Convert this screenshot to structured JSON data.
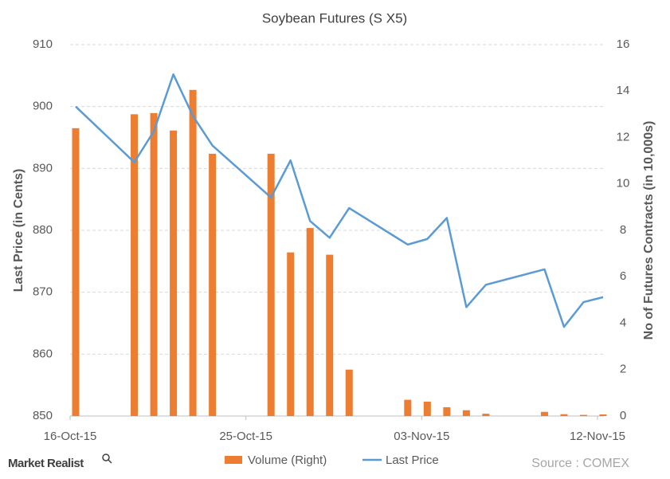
{
  "chart_data": {
    "type": "bar_line",
    "title": "Soybean Futures  (S X5)",
    "y_label": "Last Price (in Cents)",
    "y2_label": "No of Futures Contracts (in 10,000s)",
    "x": [
      "2015-10-16",
      "2015-10-19",
      "2015-10-20",
      "2015-10-21",
      "2015-10-22",
      "2015-10-23",
      "2015-10-26",
      "2015-10-27",
      "2015-10-28",
      "2015-10-29",
      "2015-10-30",
      "2015-11-02",
      "2015-11-03",
      "2015-11-04",
      "2015-11-05",
      "2015-11-06",
      "2015-11-09",
      "2015-11-10",
      "2015-11-11",
      "2015-11-12"
    ],
    "xlim": [
      "2015-10-16",
      "2015-11-12"
    ],
    "xticks": [
      {
        "value": "2015-10-16",
        "label": "16-Oct-15"
      },
      {
        "value": "2015-10-25",
        "label": "25-Oct-15"
      },
      {
        "value": "2015-11-03",
        "label": "03-Nov-15"
      },
      {
        "value": "2015-11-12",
        "label": "12-Nov-15"
      }
    ],
    "ylim": [
      850,
      910
    ],
    "yticks": [
      850,
      860,
      870,
      880,
      890,
      900,
      910
    ],
    "y2lim": [
      0,
      16
    ],
    "y2ticks": [
      0,
      2,
      4,
      6,
      8,
      10,
      12,
      14,
      16
    ],
    "grid": true,
    "series": [
      {
        "name": "Volume (Right)",
        "type": "bar",
        "axis": "y2",
        "color": "#ED7D31",
        "values": [
          12.4,
          13.0,
          13.05,
          12.3,
          14.05,
          11.3,
          11.3,
          7.05,
          8.1,
          6.95,
          2.0,
          0.7,
          0.62,
          0.38,
          0.25,
          0.1,
          0.18,
          0.08,
          0.05,
          0.07
        ]
      },
      {
        "name": "Last Price",
        "type": "line",
        "axis": "y",
        "color": "#5B9BD5",
        "values": [
          900,
          891,
          896,
          905.2,
          898.5,
          893.7,
          885.3,
          891.3,
          881.5,
          878.8,
          883.6,
          877.7,
          878.6,
          882,
          867.6,
          871.2,
          873.7,
          864.4,
          868.4,
          869.2
        ]
      }
    ],
    "source": "Source : COMEX",
    "logo": "Market Realist"
  }
}
